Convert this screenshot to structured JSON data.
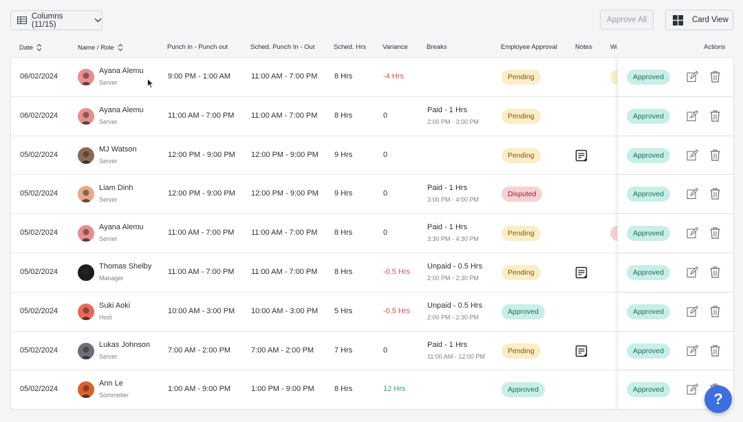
{
  "toolbar": {
    "columns_label": "Columns (11/15)",
    "approve_all_label": "Approve All",
    "card_view_label": "Card View"
  },
  "headers": {
    "date": "Date",
    "name_role": "Name / Role",
    "punch": "Punch in - Punch out",
    "sched": "Sched. Punch In - Out",
    "sched_hrs": "Sched. Hrs",
    "variance": "Variance",
    "breaks": "Breaks",
    "emp_approval": "Employee Approval",
    "notes": "Notes",
    "hidden_col": "Wa",
    "actions": "Actions"
  },
  "rows": [
    {
      "date": "06/02/2024",
      "name": "Ayana Alemu",
      "role": "Server",
      "punch": "9:00 PM - 1:00 AM",
      "sched": "11:00 AM - 7:00 PM",
      "hrs": "8 Hrs",
      "variance": "-4 Hrs",
      "variance_type": "neg",
      "break1": "",
      "break2": "",
      "emp_status": "Pending",
      "emp_type": "pending",
      "note": false,
      "peek": "pending",
      "mgr_status": "Approved",
      "avatar_color": "#e88e8e"
    },
    {
      "date": "06/02/2024",
      "name": "Ayana Alemu",
      "role": "Server",
      "punch": "11:00 AM - 7:00 PM",
      "sched": "11:00 AM - 7:00 PM",
      "hrs": "8 Hrs",
      "variance": "0",
      "variance_type": "neutral",
      "break1": "Paid - 1 Hrs",
      "break2": "2:00 PM - 3:00 PM",
      "emp_status": "Pending",
      "emp_type": "pending",
      "note": false,
      "peek": "",
      "mgr_status": "Approved",
      "avatar_color": "#e88e8e"
    },
    {
      "date": "05/02/2024",
      "name": "MJ Watson",
      "role": "Server",
      "punch": "12:00 PM - 9:00 PM",
      "sched": "12:00 PM - 9:00 PM",
      "hrs": "9 Hrs",
      "variance": "0",
      "variance_type": "neutral",
      "break1": "",
      "break2": "",
      "emp_status": "Pending",
      "emp_type": "pending",
      "note": true,
      "peek": "",
      "mgr_status": "Approved",
      "avatar_color": "#8a6a55"
    },
    {
      "date": "05/02/2024",
      "name": "Liam Dinh",
      "role": "Server",
      "punch": "12:00 PM - 9:00 PM",
      "sched": "12:00 PM - 9:00 PM",
      "hrs": "9 Hrs",
      "variance": "0",
      "variance_type": "neutral",
      "break1": "Paid - 1 Hrs",
      "break2": "3:00 PM - 4:00 PM",
      "emp_status": "Disputed",
      "emp_type": "disputed",
      "note": false,
      "peek": "",
      "mgr_status": "Approved",
      "avatar_color": "#e8a98c"
    },
    {
      "date": "05/02/2024",
      "name": "Ayana Alemu",
      "role": "Server",
      "punch": "11:00 AM - 7:00 PM",
      "sched": "11:00 AM - 7:00 PM",
      "hrs": "8 Hrs",
      "variance": "0",
      "variance_type": "neutral",
      "break1": "Paid - 1 Hrs",
      "break2": "3:30 PM - 4:30 PM",
      "emp_status": "Pending",
      "emp_type": "pending",
      "note": false,
      "peek": "disputed",
      "mgr_status": "Approved",
      "avatar_color": "#e88e8e"
    },
    {
      "date": "05/02/2024",
      "name": "Thomas Shelby",
      "role": "Manager",
      "punch": "11:00 AM - 7:00 PM",
      "sched": "11:00 AM - 7:00 PM",
      "hrs": "8 Hrs",
      "variance": "-0.5 Hrs",
      "variance_type": "neg",
      "break1": "Unpaid - 0.5 Hrs",
      "break2": "2:00 PM - 2:30 PM",
      "emp_status": "Pending",
      "emp_type": "pending",
      "note": true,
      "peek": "",
      "mgr_status": "Approved",
      "avatar_color": "#1d1d1f"
    },
    {
      "date": "05/02/2024",
      "name": "Suki Aoki",
      "role": "Host",
      "punch": "10:00 AM - 3:00 PM",
      "sched": "10:00 AM - 3:00 PM",
      "hrs": "5 Hrs",
      "variance": "-0.5 Hrs",
      "variance_type": "neg",
      "break1": "Unpaid - 0.5 Hrs",
      "break2": "2:00 PM - 2:30 PM",
      "emp_status": "Approved",
      "emp_type": "approved",
      "note": false,
      "peek": "",
      "mgr_status": "Approved",
      "avatar_color": "#e86a5a"
    },
    {
      "date": "05/02/2024",
      "name": "Lukas Johnson",
      "role": "Server",
      "punch": "7:00 AM - 2:00 PM",
      "sched": "7:00 AM - 2:00 PM",
      "hrs": "7 Hrs",
      "variance": "0",
      "variance_type": "neutral",
      "break1": "Paid - 1 Hrs",
      "break2": "11:00 AM - 12:00 PM",
      "emp_status": "Pending",
      "emp_type": "pending",
      "note": true,
      "peek": "",
      "mgr_status": "Approved",
      "avatar_color": "#6b7078"
    },
    {
      "date": "05/02/2024",
      "name": "Ann Le",
      "role": "Sommelier",
      "punch": "1:00 AM - 9:00 PM",
      "sched": "1:00 PM - 9:00 PM",
      "hrs": "8 Hrs",
      "variance": "12 Hrs",
      "variance_type": "pos",
      "break1": "",
      "break2": "",
      "emp_status": "Approved",
      "emp_type": "approved",
      "note": false,
      "peek": "",
      "mgr_status": "Approved",
      "avatar_color": "#d9622b"
    }
  ],
  "help_label": "?",
  "colors": {
    "accent": "#3d6fe0",
    "pending_bg": "#fbeec6",
    "disputed_bg": "#f7d0d3",
    "approved_bg": "#c8efe7",
    "negative": "#d2534f",
    "positive": "#2fae7a"
  }
}
